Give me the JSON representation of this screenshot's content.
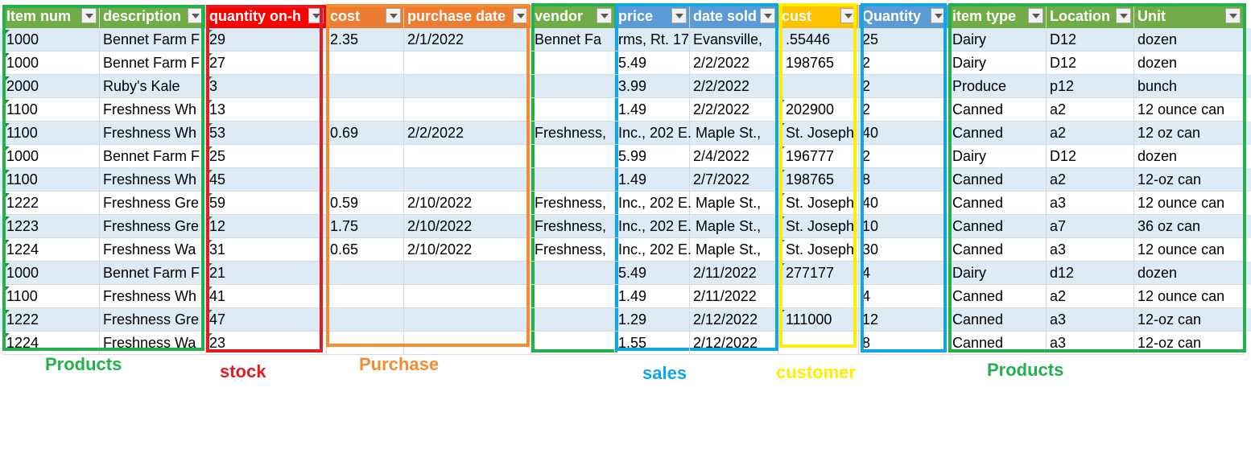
{
  "headers": [
    {
      "id": "item-num",
      "label": "Item num",
      "color": "#70ad47"
    },
    {
      "id": "description",
      "label": "description",
      "color": "#70ad47"
    },
    {
      "id": "quantity-on-hand",
      "label": "quantity on-h",
      "color": "#ff0000"
    },
    {
      "id": "cost",
      "label": "cost",
      "color": "#ed7d31"
    },
    {
      "id": "purchase-date",
      "label": "purchase date",
      "color": "#ed7d31"
    },
    {
      "id": "vendor",
      "label": "vendor",
      "color": "#70ad47"
    },
    {
      "id": "price",
      "label": "price",
      "color": "#5b9bd5"
    },
    {
      "id": "date-sold",
      "label": "date sold",
      "color": "#5b9bd5"
    },
    {
      "id": "cust",
      "label": "cust",
      "color": "#ffc000"
    },
    {
      "id": "quantity",
      "label": "Quantity",
      "color": "#5b9bd5"
    },
    {
      "id": "item-type",
      "label": "item type",
      "color": "#70ad47"
    },
    {
      "id": "location",
      "label": "Location",
      "color": "#70ad47"
    },
    {
      "id": "unit",
      "label": "Unit",
      "color": "#70ad47"
    }
  ],
  "rows": [
    {
      "item": "1000",
      "desc": "Bennet Farm F",
      "qoh": "29",
      "cost": "2.35",
      "pdate": " 2/1/2022",
      "vendor": "Bennet Fa",
      "price": "rms, Rt. 17",
      "datesold": "Evansville,",
      "cust": ".55446",
      "qty": "25",
      "type": "Dairy",
      "loc": "D12",
      "unit": "dozen"
    },
    {
      "item": "1000",
      "desc": "Bennet Farm F",
      "qoh": "27",
      "cost": "",
      "pdate": "",
      "vendor": "",
      "price": "5.49",
      "datesold": "2/2/2022",
      "cust": "198765",
      "qty": "2",
      "type": "Dairy",
      "loc": "D12",
      "unit": "dozen"
    },
    {
      "item": "2000",
      "desc": "Ruby's Kale",
      "qoh": "3",
      "cost": "",
      "pdate": "",
      "vendor": "",
      "price": "3.99",
      "datesold": "2/2/2022",
      "cust": "",
      "qty": "2",
      "type": "Produce",
      "loc": "p12",
      "unit": "bunch"
    },
    {
      "item": "1100",
      "desc": "Freshness Wh",
      "qoh": "13",
      "cost": "",
      "pdate": "",
      "vendor": "",
      "price": "1.49",
      "datesold": "2/2/2022",
      "cust": "202900",
      "qty": "2",
      "type": "Canned",
      "loc": "a2",
      "unit": "12 ounce can"
    },
    {
      "item": "1100",
      "desc": "Freshness Wh",
      "qoh": "53",
      "cost": "0.69",
      "pdate": "2/2/2022",
      "vendor": "Freshness,",
      "price": "Inc., 202 E. Maple St.,",
      "datesold": "",
      "cust": "St. Joseph",
      "qty": "40",
      "type": "Canned",
      "loc": "a2",
      "unit": "12 oz can"
    },
    {
      "item": "1000",
      "desc": "Bennet Farm F",
      "qoh": "25",
      "cost": "",
      "pdate": "",
      "vendor": "",
      "price": "5.99",
      "datesold": "2/4/2022",
      "cust": "196777",
      "qty": "2",
      "type": "Dairy",
      "loc": "D12",
      "unit": "dozen"
    },
    {
      "item": "1100",
      "desc": "Freshness Wh",
      "qoh": "45",
      "cost": "",
      "pdate": "",
      "vendor": "",
      "price": "1.49",
      "datesold": "2/7/2022",
      "cust": "198765",
      "qty": "8",
      "type": "Canned",
      "loc": "a2",
      "unit": "12-oz can"
    },
    {
      "item": "1222",
      "desc": "Freshness Gre",
      "qoh": "59",
      "cost": "0.59",
      "pdate": "2/10/2022",
      "vendor": "Freshness,",
      "price": "Inc., 202 E. Maple St.,",
      "datesold": "",
      "cust": "St. Joseph",
      "qty": "40",
      "type": "Canned",
      "loc": "a3",
      "unit": "12 ounce can"
    },
    {
      "item": "1223",
      "desc": "Freshness Gre",
      "qoh": "12",
      "cost": "1.75",
      "pdate": "2/10/2022",
      "vendor": "Freshness,",
      "price": "Inc., 202 E. Maple St.,",
      "datesold": "",
      "cust": "St. Joseph",
      "qty": "10",
      "type": "Canned",
      "loc": "a7",
      "unit": "36 oz can"
    },
    {
      "item": "1224",
      "desc": "Freshness Wa",
      "qoh": "31",
      "cost": "0.65",
      "pdate": "2/10/2022",
      "vendor": "Freshness,",
      "price": "Inc., 202 E. Maple St.,",
      "datesold": "",
      "cust": "St. Joseph",
      "qty": "30",
      "type": "Canned",
      "loc": "a3",
      "unit": "12 ounce can"
    },
    {
      "item": "1000",
      "desc": "Bennet Farm F",
      "qoh": "21",
      "cost": "",
      "pdate": "",
      "vendor": "",
      "price": "5.49",
      "datesold": "2/11/2022",
      "cust": "277177",
      "qty": "4",
      "type": "Dairy",
      "loc": "d12",
      "unit": "dozen"
    },
    {
      "item": "1100",
      "desc": "Freshness Wh",
      "qoh": "41",
      "cost": "",
      "pdate": "",
      "vendor": "",
      "price": "1.49",
      "datesold": "2/11/2022",
      "cust": "",
      "qty": "4",
      "type": "Canned",
      "loc": "a2",
      "unit": "12 ounce can"
    },
    {
      "item": "1222",
      "desc": "Freshness Gre",
      "qoh": "47",
      "cost": "",
      "pdate": "",
      "vendor": "",
      "price": "1.29",
      "datesold": "2/12/2022",
      "cust": "111000",
      "qty": "12",
      "type": "Canned",
      "loc": "a3",
      "unit": "12-oz can"
    },
    {
      "item": "1224",
      "desc": "Freshness Wa",
      "qoh": "23",
      "cost": "",
      "pdate": "",
      "vendor": "",
      "price": "1.55",
      "datesold": "2/12/2022",
      "cust": "",
      "qty": "8",
      "type": "Canned",
      "loc": "a3",
      "unit": "12-oz can"
    }
  ],
  "groups": [
    {
      "id": "products-left",
      "label": "Products",
      "color": "#22b14c"
    },
    {
      "id": "stock",
      "label": "stock",
      "color": "#e21c25"
    },
    {
      "id": "purchase",
      "label": "Purchase",
      "color": "#f58c2f"
    },
    {
      "id": "vendor",
      "label": "",
      "color": "#22b14c"
    },
    {
      "id": "sales",
      "label": "sales",
      "color": "#10a6e1"
    },
    {
      "id": "customer",
      "label": "customer",
      "color": "#ffee00"
    },
    {
      "id": "quantity",
      "label": "",
      "color": "#10a6e1"
    },
    {
      "id": "products-right",
      "label": "Products",
      "color": "#22b14c"
    }
  ]
}
